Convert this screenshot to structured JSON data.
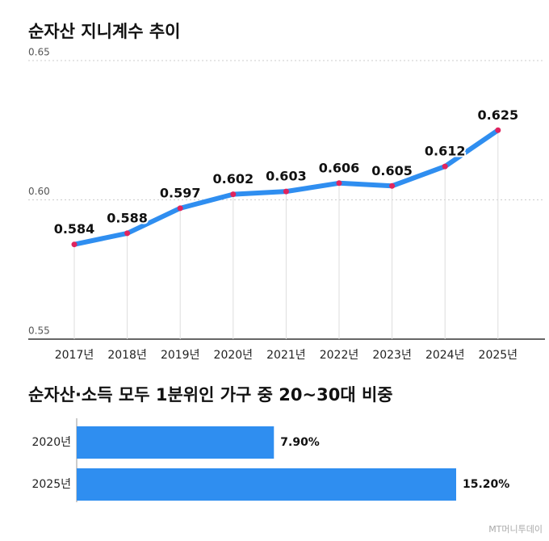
{
  "chart_data": [
    {
      "type": "line",
      "title": "순자산 지니계수 추이",
      "categories": [
        "2017년",
        "2018년",
        "2019년",
        "2020년",
        "2021년",
        "2022년",
        "2023년",
        "2024년",
        "2025년"
      ],
      "values": [
        0.584,
        0.588,
        0.597,
        0.602,
        0.603,
        0.606,
        0.605,
        0.612,
        0.625
      ],
      "color": "#2f8ef0",
      "marker_color": "#e0245e",
      "ylim": [
        0.55,
        0.65
      ],
      "yticks": [
        {
          "value": 0.55,
          "label": "0.55"
        },
        {
          "value": 0.6,
          "label": "0.60"
        },
        {
          "value": 0.65,
          "label": "0.65"
        }
      ],
      "grid": true
    },
    {
      "type": "hbar",
      "title": "순자산·소득 모두 1분위인 가구 중 20~30대 비중",
      "categories": [
        "2020년",
        "2025년"
      ],
      "values": [
        7.9,
        15.2
      ],
      "value_labels": [
        "7.90%",
        "15.20%"
      ],
      "color": "#2f8ef0"
    }
  ],
  "watermark": "MT머니투데이"
}
